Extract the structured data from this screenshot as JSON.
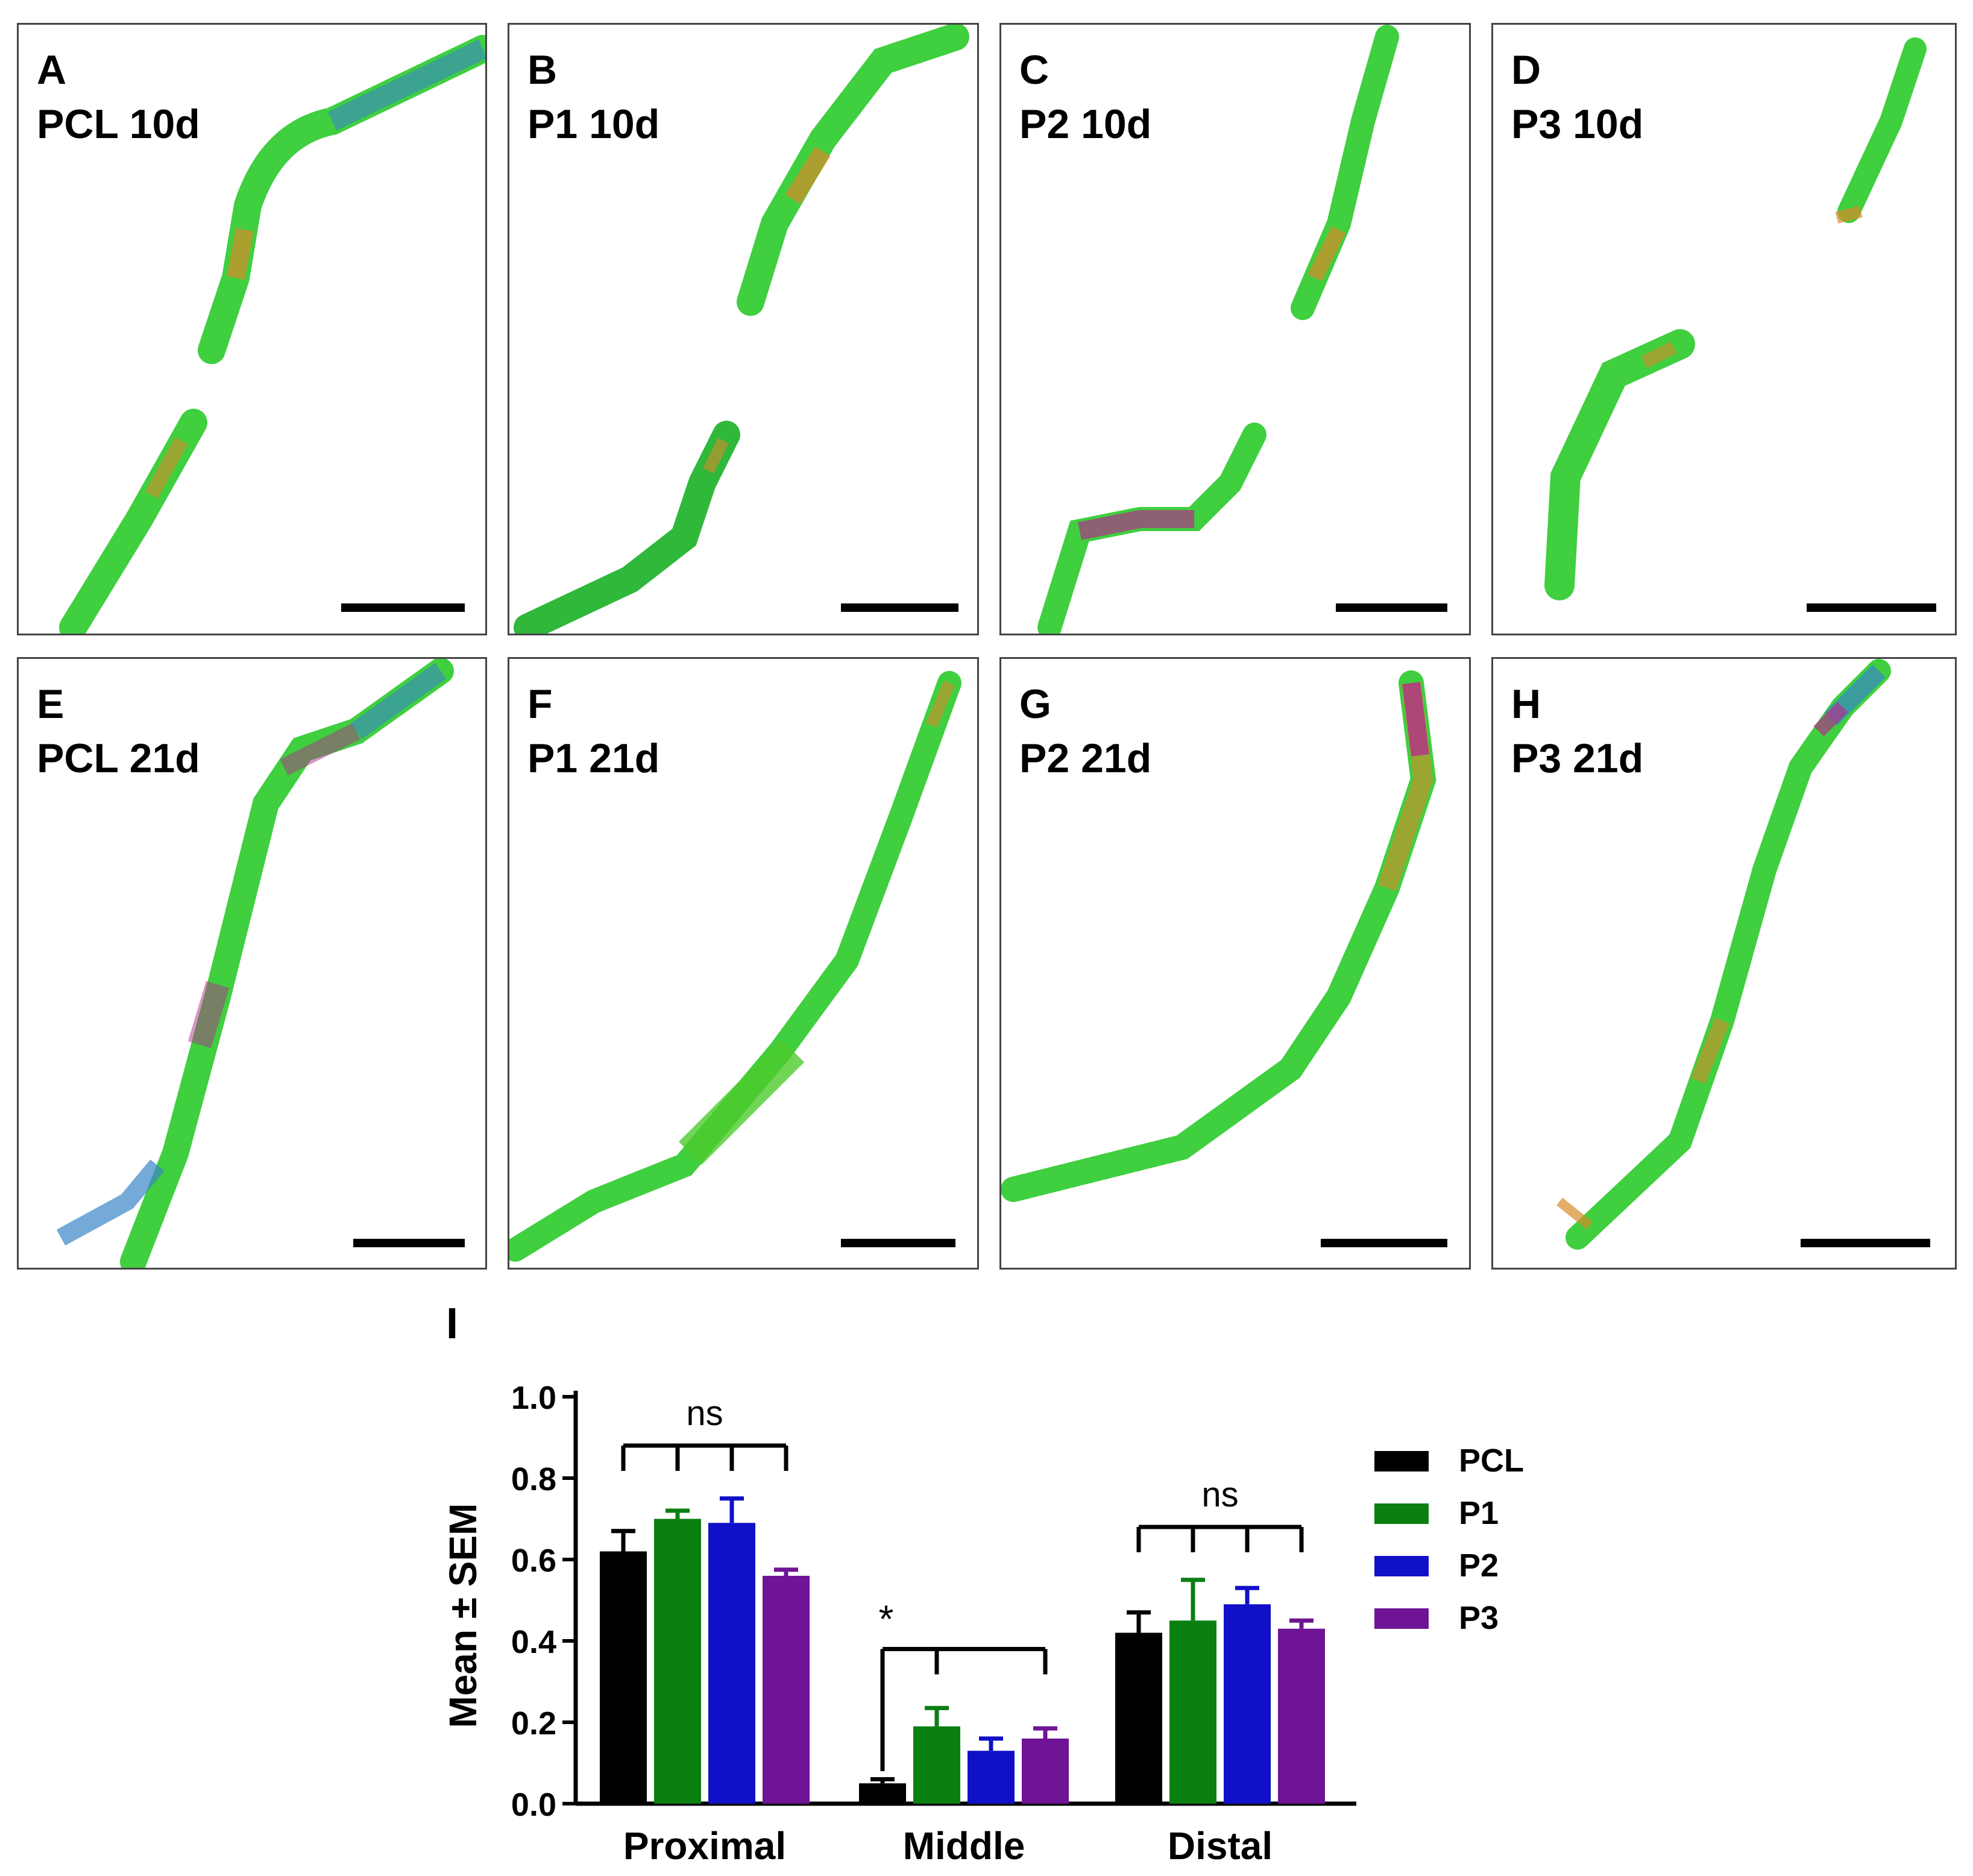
{
  "panels": [
    {
      "letter": "A",
      "label": "PCL 10d"
    },
    {
      "letter": "B",
      "label": "P1 10d"
    },
    {
      "letter": "C",
      "label": "P2 10d"
    },
    {
      "letter": "D",
      "label": "P3 10d"
    },
    {
      "letter": "E",
      "label": "PCL 21d"
    },
    {
      "letter": "F",
      "label": "P1 21d"
    },
    {
      "letter": "G",
      "label": "P2 21d"
    },
    {
      "letter": "H",
      "label": "P3 21d"
    }
  ],
  "colors": {
    "PCL": "#000000",
    "P1": "#0a7f12",
    "P2": "#1010c8",
    "P3": "#6e1494",
    "fiber_green": "#3fcf3f",
    "fiber_orange": "#d98a2a",
    "fiber_magenta": "#b0308a",
    "fiber_blue": "#3a86c8"
  },
  "chart_data": {
    "type": "bar",
    "panel_letter": "I",
    "categories": [
      "Proximal",
      "Middle",
      "Distal"
    ],
    "ylabel": "Mean ± SEM",
    "ylim": [
      0,
      1.0
    ],
    "yticks": [
      "0.0",
      "0.2",
      "0.4",
      "0.6",
      "0.8",
      "1.0"
    ],
    "series": [
      {
        "name": "PCL",
        "values": [
          0.62,
          0.05,
          0.42
        ],
        "sem": [
          0.05,
          0.01,
          0.05
        ]
      },
      {
        "name": "P1",
        "values": [
          0.7,
          0.19,
          0.45
        ],
        "sem": [
          0.02,
          0.045,
          0.1
        ]
      },
      {
        "name": "P2",
        "values": [
          0.69,
          0.13,
          0.49
        ],
        "sem": [
          0.06,
          0.03,
          0.04
        ]
      },
      {
        "name": "P3",
        "values": [
          0.56,
          0.16,
          0.43
        ],
        "sem": [
          0.015,
          0.025,
          0.02
        ]
      }
    ],
    "annotations": [
      {
        "group": "Proximal",
        "text": "ns"
      },
      {
        "group": "Middle",
        "text": "*"
      },
      {
        "group": "Distal",
        "text": "ns"
      }
    ],
    "legend": [
      "PCL",
      "P1",
      "P2",
      "P3"
    ]
  }
}
